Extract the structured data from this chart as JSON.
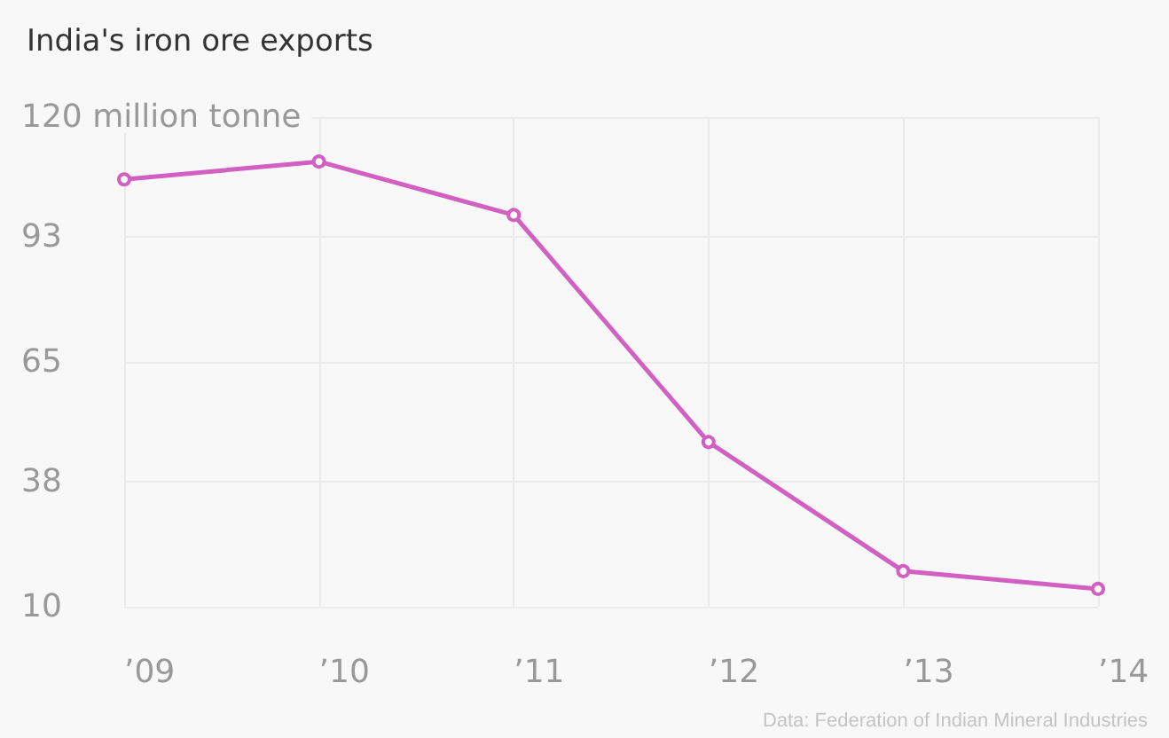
{
  "chart_data": {
    "type": "line",
    "title": "India's iron ore exports",
    "categories": [
      "’09",
      "’10",
      "’11",
      "’12",
      "’13",
      "’14"
    ],
    "series": [
      {
        "color": "#d160c2",
        "values": [
          106,
          110,
          98,
          47,
          18,
          14
        ]
      }
    ],
    "ylim": [
      10,
      120
    ],
    "yticks": [
      10,
      38,
      65,
      93,
      {
        "value": 120,
        "label": "120 million tonne"
      }
    ],
    "grid": true,
    "marker": "circle",
    "line_style": "solid",
    "annotations": [
      "Data: Federation of Indian Mineral Industries"
    ]
  }
}
